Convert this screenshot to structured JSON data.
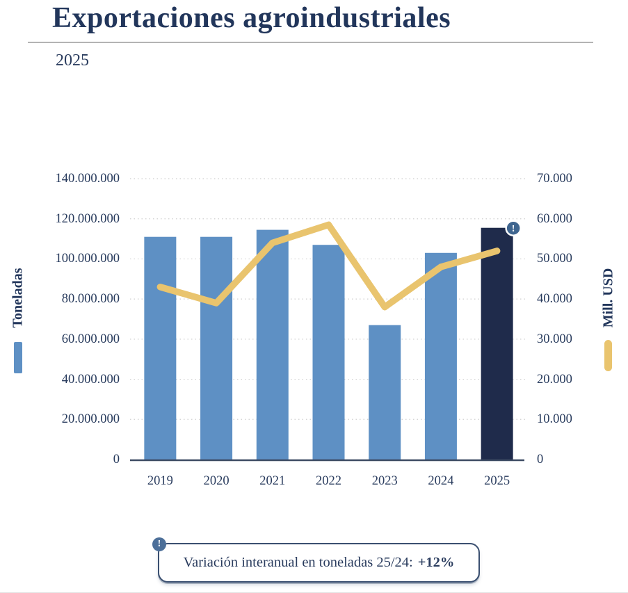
{
  "header": {
    "title": "Exportaciones agroindustriales",
    "subtitle": "2025"
  },
  "chart": {
    "left_axis": {
      "title": "Toneladas",
      "ticks": [
        "140.000.000",
        "120.000.000",
        "100.000.000",
        "80.000.000",
        "60.000.000",
        "40.000.000",
        "20.000.000",
        "0"
      ]
    },
    "right_axis": {
      "title": "Mill. USD",
      "ticks": [
        "70.000",
        "60.000",
        "50.000",
        "40.000",
        "30.000",
        "20.000",
        "10.000",
        "0"
      ]
    },
    "x_axis": {
      "ticks": [
        "2019",
        "2020",
        "2021",
        "2022",
        "2023",
        "2024",
        "2025"
      ]
    }
  },
  "chart_data": [
    {
      "type": "bar",
      "name": "Toneladas",
      "axis": "left",
      "categories": [
        "2019",
        "2020",
        "2021",
        "2022",
        "2023",
        "2024",
        "2025"
      ],
      "values": [
        111000000,
        111000000,
        114500000,
        107000000,
        67000000,
        103000000,
        115500000
      ],
      "ylim": [
        0,
        140000000
      ],
      "highlight_index": 6,
      "grid": "dotted horizontal"
    },
    {
      "type": "line",
      "name": "Mill. USD",
      "axis": "right",
      "categories": [
        "2019",
        "2020",
        "2021",
        "2022",
        "2023",
        "2024",
        "2025"
      ],
      "values": [
        43000,
        39000,
        54000,
        58500,
        38000,
        48000,
        52000
      ],
      "ylim": [
        0,
        70000
      ]
    }
  ],
  "badge": {
    "icon": "!"
  },
  "callout": {
    "icon": "!",
    "text": "Variación interanual en toneladas 25/24:",
    "highlight": "+12%"
  },
  "colors": {
    "bar": "#5e90c4",
    "bar_highlight": "#1f2b4b",
    "line": "#e9c46e",
    "navy_text": "#22365b",
    "gridline": "#cfcfcf",
    "axis_line": "#3d4b63",
    "badge_on_bar": "#3f658f",
    "badge_on_callout": "#4c6f99",
    "callout_border": "#3a4f70",
    "divider": "#b4b4b4"
  }
}
